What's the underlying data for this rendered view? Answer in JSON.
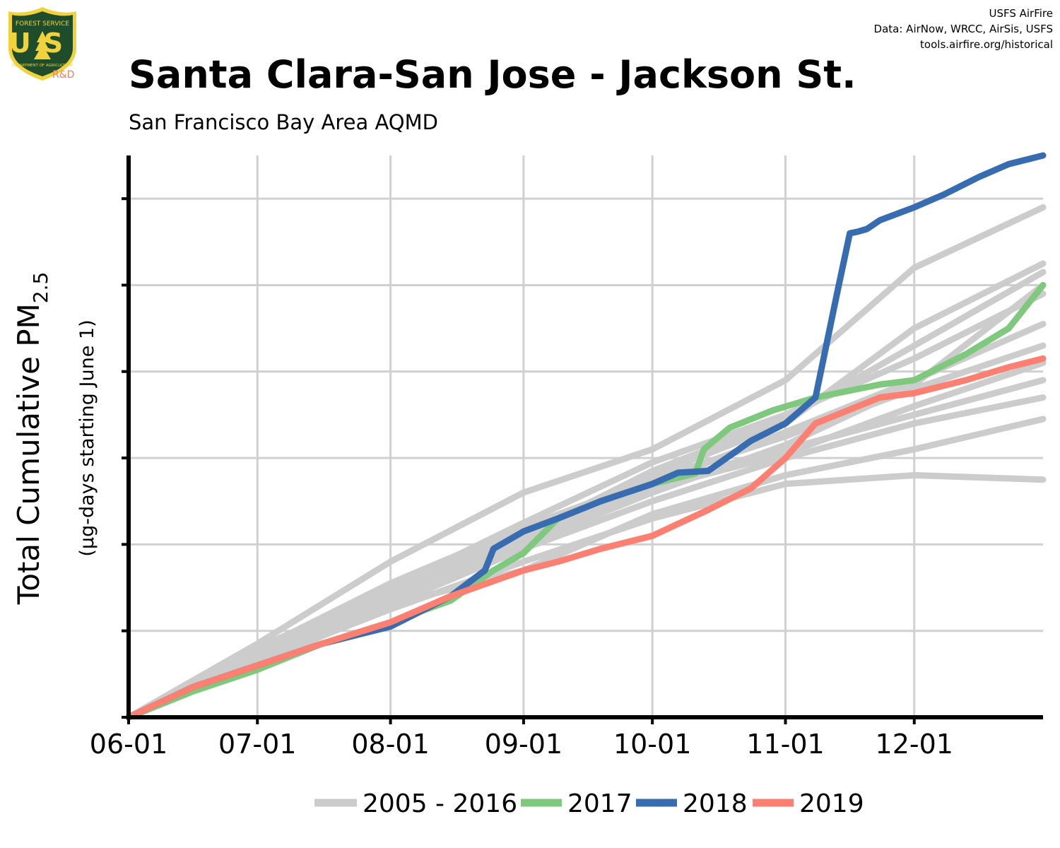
{
  "header": {
    "title": "Santa Clara-San Jose - Jackson St.",
    "subtitle": "San Francisco Bay Area AQMD",
    "credits": [
      "USFS AirFire",
      "Data: AirNow, WRCC, AirSis, USFS",
      "tools.airfire.org/historical"
    ],
    "logo": {
      "text_top": "FOREST SERVICE",
      "text_main": "US",
      "text_bottom": "DEPARTMENT OF AGRICULTURE",
      "tag": "R&D",
      "icon": "usfs-shield-icon"
    }
  },
  "chart_data": {
    "type": "line",
    "ylabel_main": "Total Cumulative PM",
    "ylabel_sub": "2.5",
    "ylabel_secondary": "(µg-days starting June 1)",
    "x_tick_labels": [
      "06-01",
      "07-01",
      "08-01",
      "09-01",
      "10-01",
      "11-01",
      "12-01"
    ],
    "x_tick_days": [
      0,
      30,
      61,
      92,
      122,
      153,
      183
    ],
    "xlim": [
      0,
      213
    ],
    "ylim": [
      0,
      6.5
    ],
    "y_ticks": [
      0,
      1,
      2,
      3,
      4,
      5,
      6
    ],
    "y_tick_labels_shown": false,
    "grid": true,
    "legend_position": "bottom",
    "colors": {
      "historical": "#cccccc",
      "2017": "#7fc97f",
      "2018": "#386cb0",
      "2019": "#fb8072"
    },
    "legend": [
      {
        "label": "2005 - 2016",
        "color": "#cccccc"
      },
      {
        "label": "2017",
        "color": "#7fc97f"
      },
      {
        "label": "2018",
        "color": "#386cb0"
      },
      {
        "label": "2019",
        "color": "#fb8072"
      }
    ],
    "historical_series": [
      {
        "x": [
          0,
          30,
          61,
          92,
          122,
          153,
          183,
          213
        ],
        "y": [
          0,
          0.85,
          1.8,
          2.6,
          3.1,
          3.9,
          5.2,
          5.9
        ]
      },
      {
        "x": [
          0,
          30,
          61,
          92,
          122,
          153,
          183,
          213
        ],
        "y": [
          0,
          0.8,
          1.5,
          2.1,
          2.85,
          3.45,
          4.3,
          5.15
        ]
      },
      {
        "x": [
          0,
          30,
          61,
          92,
          122,
          153,
          183,
          213
        ],
        "y": [
          0,
          0.7,
          1.45,
          2.0,
          2.7,
          3.1,
          3.5,
          3.9
        ]
      },
      {
        "x": [
          0,
          30,
          61,
          92,
          122,
          153,
          183,
          213
        ],
        "y": [
          0,
          0.75,
          1.3,
          1.95,
          2.5,
          3.0,
          3.4,
          3.7
        ]
      },
      {
        "x": [
          0,
          30,
          61,
          92,
          122,
          153,
          183,
          213
        ],
        "y": [
          0,
          0.65,
          1.25,
          1.8,
          2.3,
          2.7,
          2.8,
          2.75
        ]
      },
      {
        "x": [
          0,
          30,
          61,
          92,
          122,
          153,
          183,
          213
        ],
        "y": [
          0,
          0.6,
          1.3,
          1.7,
          2.35,
          2.8,
          3.1,
          3.45
        ]
      },
      {
        "x": [
          0,
          30,
          61,
          92,
          122,
          153,
          183,
          213
        ],
        "y": [
          0,
          0.72,
          1.35,
          2.05,
          2.7,
          3.3,
          3.9,
          4.55
        ]
      },
      {
        "x": [
          0,
          30,
          61,
          92,
          122,
          153,
          183,
          213
        ],
        "y": [
          0,
          0.78,
          1.55,
          2.2,
          2.75,
          3.25,
          3.8,
          4.3
        ]
      },
      {
        "x": [
          0,
          30,
          61,
          92,
          122,
          153,
          183,
          213
        ],
        "y": [
          0,
          0.7,
          1.3,
          2.0,
          2.6,
          3.15,
          3.85,
          5.0
        ]
      },
      {
        "x": [
          0,
          30,
          61,
          92,
          122,
          153,
          183,
          213
        ],
        "y": [
          0,
          0.75,
          1.4,
          2.1,
          2.65,
          3.05,
          3.6,
          4.1
        ]
      },
      {
        "x": [
          0,
          30,
          61,
          92,
          122,
          153,
          183,
          213
        ],
        "y": [
          0,
          0.7,
          1.45,
          2.15,
          2.8,
          3.4,
          4.5,
          5.25
        ]
      },
      {
        "x": [
          0,
          30,
          61,
          92,
          122,
          153,
          183,
          213
        ],
        "y": [
          0,
          0.68,
          1.5,
          2.25,
          2.95,
          3.5,
          4.15,
          4.9
        ]
      }
    ],
    "series": [
      {
        "name": "2017",
        "x": [
          0,
          15,
          30,
          45,
          61,
          75,
          85,
          92,
          100,
          110,
          122,
          132,
          134,
          140,
          150,
          160,
          175,
          183,
          195,
          205,
          213
        ],
        "y": [
          0,
          0.3,
          0.55,
          0.85,
          1.1,
          1.35,
          1.7,
          1.9,
          2.3,
          2.5,
          2.7,
          2.82,
          3.1,
          3.35,
          3.55,
          3.7,
          3.85,
          3.9,
          4.2,
          4.5,
          5.0
        ]
      },
      {
        "name": "2018",
        "x": [
          0,
          15,
          30,
          45,
          61,
          75,
          83,
          85,
          92,
          100,
          110,
          122,
          128,
          135,
          145,
          153,
          160,
          165,
          168,
          170,
          172,
          175,
          183,
          190,
          198,
          205,
          213
        ],
        "y": [
          0,
          0.35,
          0.6,
          0.85,
          1.05,
          1.4,
          1.7,
          1.95,
          2.15,
          2.3,
          2.5,
          2.7,
          2.83,
          2.85,
          3.2,
          3.4,
          3.7,
          4.9,
          5.6,
          5.62,
          5.65,
          5.75,
          5.9,
          6.05,
          6.25,
          6.4,
          6.5
        ]
      },
      {
        "name": "2019",
        "x": [
          0,
          15,
          30,
          45,
          61,
          75,
          92,
          100,
          110,
          122,
          135,
          145,
          153,
          160,
          165,
          175,
          183,
          195,
          205,
          213
        ],
        "y": [
          0,
          0.35,
          0.6,
          0.85,
          1.1,
          1.4,
          1.7,
          1.8,
          1.95,
          2.1,
          2.4,
          2.65,
          3.0,
          3.4,
          3.5,
          3.7,
          3.75,
          3.9,
          4.05,
          4.15
        ]
      }
    ]
  }
}
